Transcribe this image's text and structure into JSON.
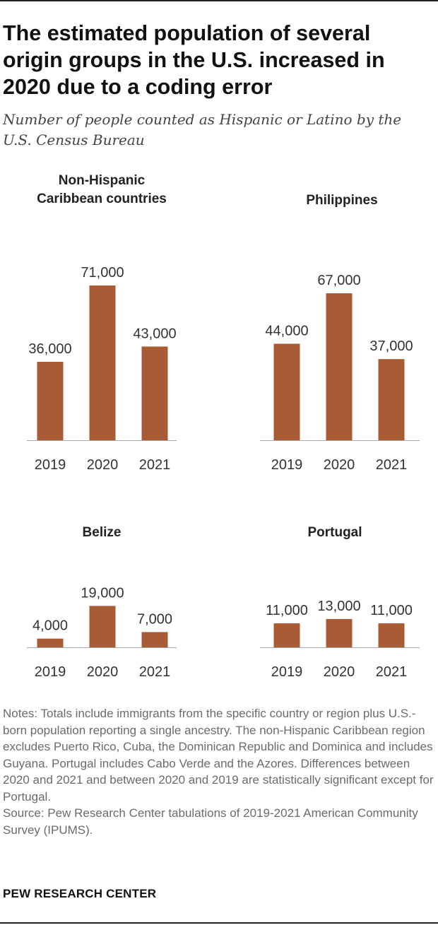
{
  "title": "The estimated population of several origin groups in the U.S. increased in 2020 due to a coding error",
  "subtitle": "Number of people counted as Hispanic or Latino by the U.S. Census Bureau",
  "colors": {
    "bar": "#a85c35",
    "axis": "#aaaaaa",
    "label": "#333333"
  },
  "chart_data": [
    {
      "type": "bar",
      "title": "Non-Hispanic Caribbean countries",
      "categories": [
        "2019",
        "2020",
        "2021"
      ],
      "values": [
        36000,
        71000,
        43000
      ],
      "labels": [
        "36,000",
        "71,000",
        "43,000"
      ],
      "ylim": [
        0,
        71000
      ],
      "grid": false
    },
    {
      "type": "bar",
      "title": "Philippines",
      "categories": [
        "2019",
        "2020",
        "2021"
      ],
      "values": [
        44000,
        67000,
        37000
      ],
      "labels": [
        "44,000",
        "67,000",
        "37,000"
      ],
      "ylim": [
        0,
        67000
      ],
      "grid": false
    },
    {
      "type": "bar",
      "title": "Belize",
      "categories": [
        "2019",
        "2020",
        "2021"
      ],
      "values": [
        4000,
        19000,
        7000
      ],
      "labels": [
        "4,000",
        "19,000",
        "7,000"
      ],
      "ylim": [
        0,
        71000
      ],
      "grid": false
    },
    {
      "type": "bar",
      "title": "Portugal",
      "categories": [
        "2019",
        "2020",
        "2021"
      ],
      "values": [
        11000,
        13000,
        11000
      ],
      "labels": [
        "11,000",
        "13,000",
        "11,000"
      ],
      "ylim": [
        0,
        71000
      ],
      "grid": false
    }
  ],
  "notes": "Notes: Totals include immigrants from the specific country or region plus U.S.-born population reporting a single ancestry. The non-Hispanic Caribbean region excludes Puerto Rico, Cuba, the Dominican Republic and Dominica and includes Guyana. Portugal includes Cabo Verde and the Azores. Differences between 2020 and 2021 and between 2020 and 2019 are statistically significant except for Portugal.",
  "source": "Source: Pew Research Center tabulations of 2019-2021 American Community Survey (IPUMS).",
  "footer": "PEW RESEARCH CENTER"
}
